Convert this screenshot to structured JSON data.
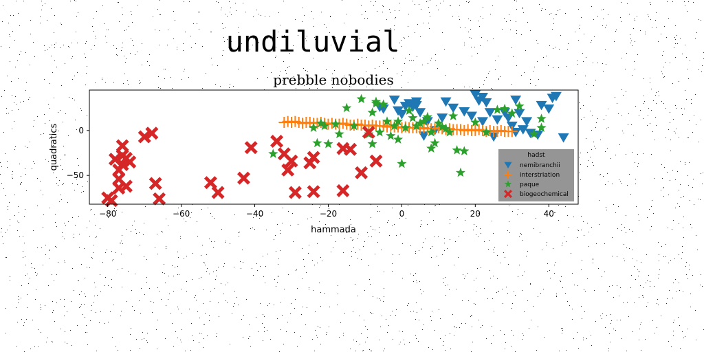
{
  "suptitle": "undiluvial",
  "chart_data": {
    "type": "scatter",
    "title": "prebble nobodies",
    "xlabel": "hammada",
    "ylabel": "quadratics",
    "xlim": [
      -85,
      48
    ],
    "ylim": [
      -82,
      45
    ],
    "xticks": [
      -80,
      -60,
      -40,
      -20,
      0,
      20,
      40
    ],
    "yticks": [
      -50,
      0
    ],
    "xtick_labels": [
      "−80",
      "−60",
      "−40",
      "−20",
      "0",
      "20",
      "40"
    ],
    "ytick_labels": [
      "−50",
      "0"
    ],
    "grid": false,
    "legend": {
      "title": "hadst",
      "placement": "lower right"
    },
    "series": [
      {
        "name": "nemibranchii",
        "marker": "triangle_down",
        "color": "#1f77b4",
        "points": [
          [
            -6,
            26
          ],
          [
            -5,
            24
          ],
          [
            -2,
            34
          ],
          [
            -1,
            22
          ],
          [
            0,
            18
          ],
          [
            1,
            27
          ],
          [
            2,
            30
          ],
          [
            3,
            26
          ],
          [
            4,
            28
          ],
          [
            5,
            20
          ],
          [
            6,
            -6
          ],
          [
            7,
            10
          ],
          [
            9,
            0
          ],
          [
            11,
            14
          ],
          [
            14,
            25
          ],
          [
            17,
            21
          ],
          [
            19,
            16
          ],
          [
            20,
            40
          ],
          [
            21,
            33
          ],
          [
            22,
            37
          ],
          [
            22,
            10
          ],
          [
            23,
            31
          ],
          [
            24,
            20
          ],
          [
            25,
            -7
          ],
          [
            26,
            12
          ],
          [
            28,
            20
          ],
          [
            29,
            14
          ],
          [
            30,
            5
          ],
          [
            31,
            -2
          ],
          [
            31,
            34
          ],
          [
            32,
            19
          ],
          [
            33,
            1
          ],
          [
            34,
            10
          ],
          [
            35,
            -3
          ],
          [
            37,
            -5
          ],
          [
            38,
            28
          ],
          [
            40,
            24
          ],
          [
            41,
            36
          ],
          [
            42,
            38
          ],
          [
            44,
            -8
          ],
          [
            4,
            32
          ],
          [
            12,
            32
          ]
        ]
      },
      {
        "name": "interstriation",
        "marker": "plus",
        "color": "#ff7f0e",
        "points": [
          [
            -32,
            9
          ],
          [
            -31,
            10
          ],
          [
            -30,
            9
          ],
          [
            -29,
            10
          ],
          [
            -28,
            9
          ],
          [
            -27,
            8
          ],
          [
            -26,
            9
          ],
          [
            -25,
            9
          ],
          [
            -24,
            8
          ],
          [
            -23,
            8
          ],
          [
            -22,
            9
          ],
          [
            -21,
            8
          ],
          [
            -20,
            7
          ],
          [
            -19,
            8
          ],
          [
            -18,
            7
          ],
          [
            -17,
            7
          ],
          [
            -16,
            8
          ],
          [
            -15,
            7
          ],
          [
            -14,
            6
          ],
          [
            -13,
            6
          ],
          [
            -12,
            7
          ],
          [
            -11,
            6
          ],
          [
            -10,
            6
          ],
          [
            -9,
            5
          ],
          [
            -8,
            6
          ],
          [
            -7,
            5
          ],
          [
            -6,
            5
          ],
          [
            -5,
            5
          ],
          [
            -4,
            4
          ],
          [
            -3,
            5
          ],
          [
            -2,
            4
          ],
          [
            -1,
            4
          ],
          [
            0,
            3
          ],
          [
            1,
            4
          ],
          [
            2,
            3
          ],
          [
            3,
            3
          ],
          [
            4,
            3
          ],
          [
            5,
            2
          ],
          [
            6,
            3
          ],
          [
            7,
            2
          ],
          [
            8,
            2
          ],
          [
            9,
            2
          ],
          [
            10,
            3
          ],
          [
            11,
            2
          ],
          [
            12,
            1
          ],
          [
            13,
            2
          ],
          [
            14,
            1
          ],
          [
            15,
            1
          ],
          [
            16,
            1
          ],
          [
            17,
            0
          ],
          [
            18,
            1
          ],
          [
            19,
            0
          ],
          [
            20,
            0
          ],
          [
            21,
            1
          ],
          [
            22,
            0
          ],
          [
            23,
            -1
          ],
          [
            24,
            0
          ],
          [
            25,
            -1
          ],
          [
            26,
            -1
          ],
          [
            27,
            0
          ],
          [
            28,
            -1
          ],
          [
            29,
            -1
          ],
          [
            30,
            -1
          ]
        ]
      },
      {
        "name": "paque",
        "marker": "star",
        "color": "#2ca02c",
        "points": [
          [
            -35,
            -26
          ],
          [
            -24,
            3
          ],
          [
            -23,
            -14
          ],
          [
            -22,
            8
          ],
          [
            -21,
            5
          ],
          [
            -20,
            -15
          ],
          [
            -18,
            7
          ],
          [
            -17,
            -4
          ],
          [
            -15,
            25
          ],
          [
            -13,
            5
          ],
          [
            -11,
            35
          ],
          [
            -9,
            -4
          ],
          [
            -8,
            -15
          ],
          [
            -8,
            20
          ],
          [
            -7,
            32
          ],
          [
            -6,
            -2
          ],
          [
            -5,
            29
          ],
          [
            -4,
            10
          ],
          [
            -3,
            -6
          ],
          [
            -2,
            5
          ],
          [
            -1,
            -10
          ],
          [
            -1,
            10
          ],
          [
            0,
            -37
          ],
          [
            1,
            3
          ],
          [
            2,
            22
          ],
          [
            3,
            14
          ],
          [
            4,
            5
          ],
          [
            5,
            8
          ],
          [
            6,
            10
          ],
          [
            7,
            15
          ],
          [
            8,
            -2
          ],
          [
            8,
            -20
          ],
          [
            9,
            -14
          ],
          [
            10,
            8
          ],
          [
            11,
            4
          ],
          [
            12,
            2
          ],
          [
            13,
            -2
          ],
          [
            14,
            16
          ],
          [
            15,
            -22
          ],
          [
            16,
            -47
          ],
          [
            17,
            -23
          ],
          [
            20,
            9
          ],
          [
            23,
            -2
          ],
          [
            26,
            23
          ],
          [
            28,
            24
          ],
          [
            30,
            19
          ],
          [
            32,
            27
          ],
          [
            36,
            -4
          ],
          [
            38,
            13
          ],
          [
            38,
            3
          ],
          [
            -7,
            30
          ]
        ]
      },
      {
        "name": "biogeochemical",
        "marker": "X",
        "color": "#d62728",
        "points": [
          [
            -80,
            -75
          ],
          [
            -79,
            -78
          ],
          [
            -78,
            -32
          ],
          [
            -77,
            -44
          ],
          [
            -77,
            -64
          ],
          [
            -77,
            -54
          ],
          [
            -76,
            -28
          ],
          [
            -76,
            -38
          ],
          [
            -76,
            -17
          ],
          [
            -75,
            -62
          ],
          [
            -75,
            -31
          ],
          [
            -74,
            -35
          ],
          [
            -70,
            -7
          ],
          [
            -68,
            -3
          ],
          [
            -67,
            -59
          ],
          [
            -66,
            -76
          ],
          [
            -52,
            -58
          ],
          [
            -50,
            -69
          ],
          [
            -43,
            -53
          ],
          [
            -41,
            -19
          ],
          [
            -34,
            -12
          ],
          [
            -32,
            -26
          ],
          [
            -31,
            -44
          ],
          [
            -30,
            -34
          ],
          [
            -29,
            -69
          ],
          [
            -24,
            -68
          ],
          [
            -25,
            -36
          ],
          [
            -24,
            -30
          ],
          [
            -16,
            -67
          ],
          [
            -16,
            -20
          ],
          [
            -14,
            -21
          ],
          [
            -11,
            -47
          ],
          [
            -9,
            -2
          ],
          [
            -7,
            -34
          ]
        ]
      }
    ]
  }
}
